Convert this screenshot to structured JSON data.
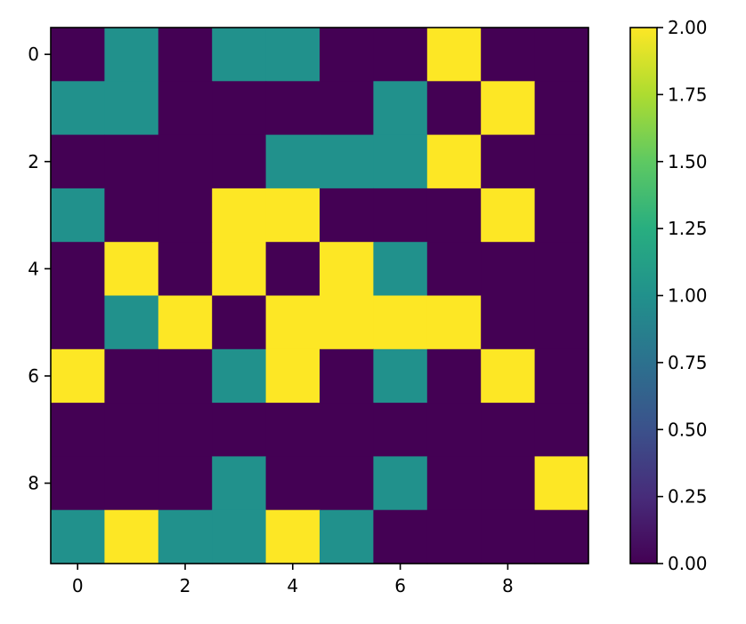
{
  "chart_data": {
    "type": "heatmap",
    "title": "",
    "xlabel": "",
    "ylabel": "",
    "rows": 10,
    "cols": 10,
    "values": [
      [
        0,
        1,
        0,
        1,
        1,
        0,
        0,
        2,
        0,
        0
      ],
      [
        1,
        1,
        0,
        0,
        0,
        0,
        1,
        0,
        2,
        0
      ],
      [
        0,
        0,
        0,
        0,
        1,
        1,
        1,
        2,
        0,
        0
      ],
      [
        1,
        0,
        0,
        2,
        2,
        0,
        0,
        0,
        2,
        0
      ],
      [
        0,
        2,
        0,
        2,
        0,
        2,
        1,
        0,
        0,
        0
      ],
      [
        0,
        1,
        2,
        0,
        2,
        2,
        2,
        2,
        0,
        0
      ],
      [
        2,
        0,
        0,
        1,
        2,
        0,
        1,
        0,
        2,
        0
      ],
      [
        0,
        0,
        0,
        0,
        0,
        0,
        0,
        0,
        0,
        0
      ],
      [
        0,
        0,
        0,
        1,
        0,
        0,
        1,
        0,
        0,
        2
      ],
      [
        1,
        2,
        1,
        1,
        2,
        1,
        0,
        0,
        0,
        0
      ]
    ],
    "x_ticks": [
      "0",
      "2",
      "4",
      "6",
      "8"
    ],
    "y_ticks": [
      "0",
      "2",
      "4",
      "6",
      "8"
    ],
    "colorbar": {
      "min": 0,
      "max": 2,
      "ticks": [
        "0.00",
        "0.25",
        "0.50",
        "0.75",
        "1.00",
        "1.25",
        "1.50",
        "1.75",
        "2.00"
      ],
      "colormap": "viridis"
    },
    "value_colors": {
      "0": "#440154",
      "1": "#21918c",
      "2": "#fde725"
    },
    "grid": false
  }
}
